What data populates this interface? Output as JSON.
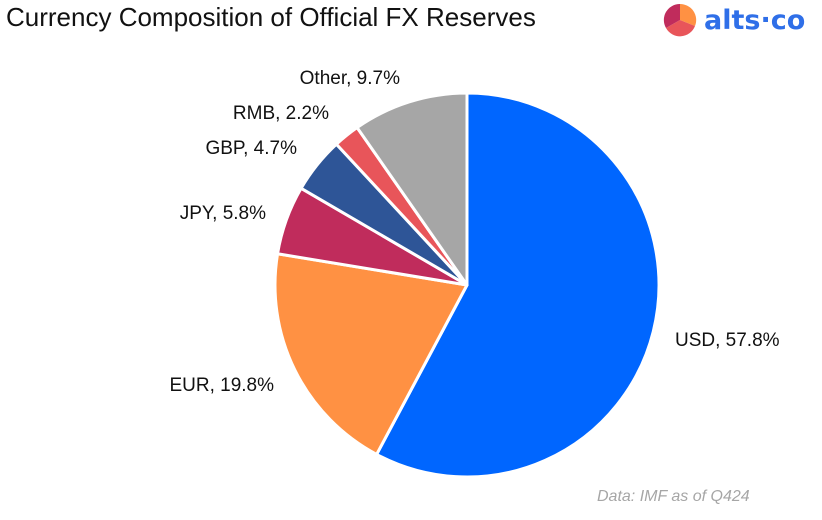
{
  "title": "Currency Composition of Official FX Reserves",
  "logo": {
    "text": "alts·co"
  },
  "source": "Data: IMF as of Q424",
  "chart_data": {
    "type": "pie",
    "start_angle_deg": 0,
    "direction": "clockwise",
    "slices": [
      {
        "label": "USD",
        "value": 57.8,
        "display": "USD, 57.8%",
        "color": "#0066ff"
      },
      {
        "label": "EUR",
        "value": 19.8,
        "display": "EUR, 19.8%",
        "color": "#ff9143"
      },
      {
        "label": "JPY",
        "value": 5.8,
        "display": "JPY, 5.8%",
        "color": "#c02c5c"
      },
      {
        "label": "GBP",
        "value": 4.7,
        "display": "GBP, 4.7%",
        "color": "#2e5597"
      },
      {
        "label": "RMB",
        "value": 2.2,
        "display": "RMB, 2.2%",
        "color": "#e8555a"
      },
      {
        "label": "Other",
        "value": 9.7,
        "display": "Other, 9.7%",
        "color": "#a6a6a6"
      }
    ]
  }
}
